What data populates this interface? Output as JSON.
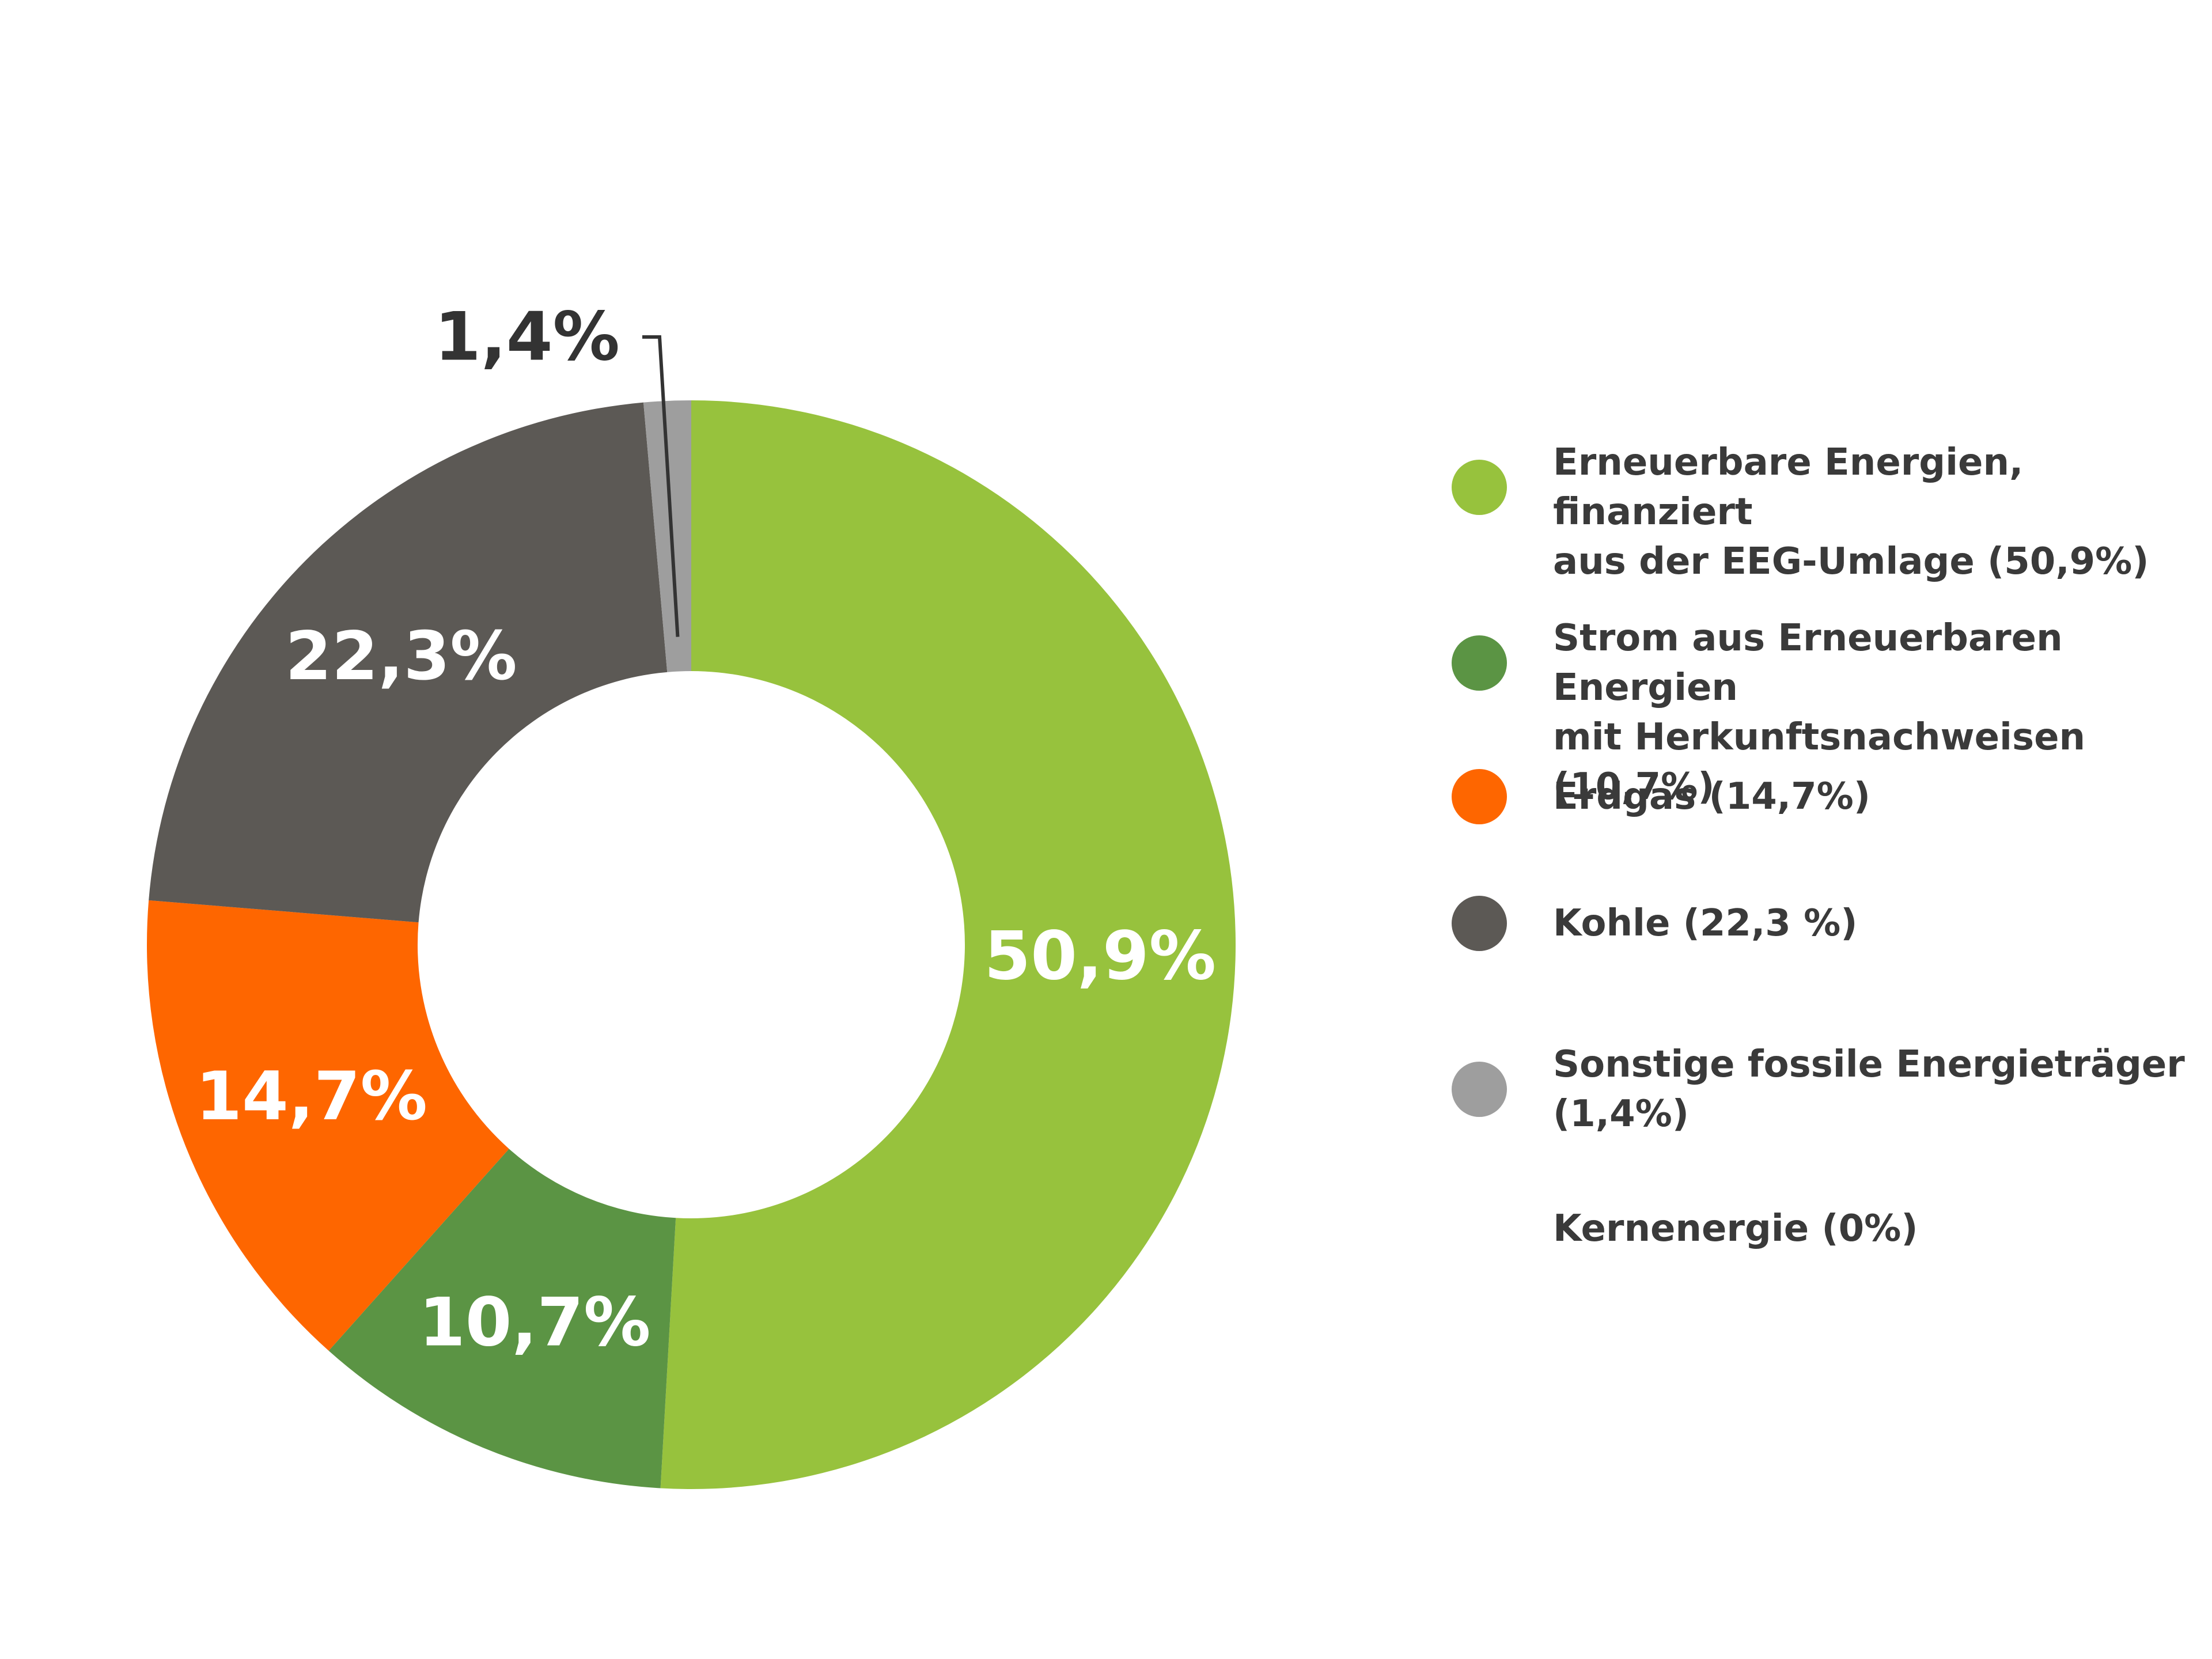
{
  "chart_data": {
    "type": "pie",
    "title": "",
    "donut": true,
    "legend_position": "right",
    "slices": [
      {
        "label": "Erneuerbare Energien, finanziert aus der EEG-Umlage (50,9%)",
        "value": 50.9,
        "display": "50,9%",
        "color": "#97c23d",
        "label_placement": "inside"
      },
      {
        "label": "Strom aus Erneuerbaren Energien mit Herkunftsnachweisen (10,7%)",
        "value": 10.7,
        "display": "10,7%",
        "color": "#5b9444",
        "label_placement": "inside"
      },
      {
        "label": "Erdgas (14,7%)",
        "value": 14.7,
        "display": "14,7%",
        "color": "#fe6600",
        "label_placement": "inside"
      },
      {
        "label": "Kohle (22,3 %)",
        "value": 22.3,
        "display": "22,3%",
        "color": "#5c5955",
        "label_placement": "inside"
      },
      {
        "label": "Sonstige fossile Energieträger (1,4%)",
        "value": 1.4,
        "display": "1,4%",
        "color": "#9e9e9e",
        "label_placement": "outside"
      },
      {
        "label": "Kernenergie (0%)",
        "value": 0,
        "display": "",
        "color": "",
        "label_placement": "none"
      }
    ]
  },
  "legend": {
    "items": [
      {
        "text": "Erneuerbare Energien, finanziert\naus der EEG-Umlage (50,9%)",
        "color": "#97c23d"
      },
      {
        "text": "Strom aus Erneuerbaren Energien\nmit Herkunftsnachweisen (10,7%)",
        "color": "#5b9444"
      },
      {
        "text": "Erdgas (14,7%)",
        "color": "#fe6600"
      },
      {
        "text": "Kohle (22,3 %)",
        "color": "#5c5955"
      },
      {
        "text": "Sonstige fossile Energieträger\n(1,4%)",
        "color": "#9e9e9e"
      },
      {
        "text": "Kernenergie (0%)",
        "color": ""
      }
    ]
  }
}
